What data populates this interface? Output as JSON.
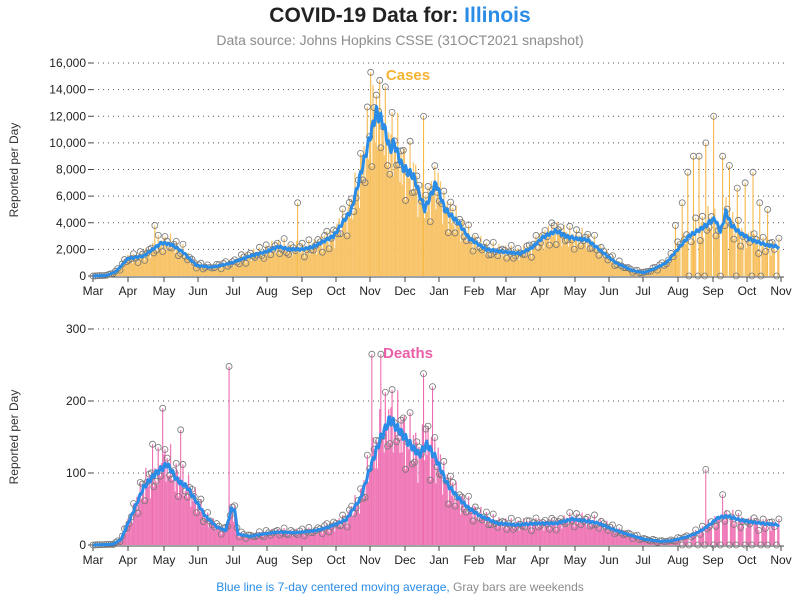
{
  "header": {
    "title_prefix": "COVID-19 Data for: ",
    "state": "Illinois",
    "subtitle": "Data source: Johns Hopkins CSSE (31OCT2021 snapshot)"
  },
  "footnote": {
    "blue_part": "Blue line is 7-day centered moving average,",
    "gray_part": " Gray bars are weekends"
  },
  "colors": {
    "cases": "#f5b335",
    "cases_bar": "#f7c46a",
    "deaths": "#ea5fa8",
    "deaths_bar": "#f07ab8",
    "average": "#2a8ce6",
    "weekend": "#8c8c8c"
  },
  "chart_data": [
    {
      "type": "bar",
      "name": "cases",
      "panel_title": "Cases",
      "ylabel": "Reported per Day",
      "yticks": [
        "0",
        "2,000",
        "4,000",
        "6,000",
        "8,000",
        "10,000",
        "12,000",
        "14,000",
        "16,000"
      ],
      "ylim": [
        0,
        16000
      ],
      "months": [
        "Mar",
        "Apr",
        "May",
        "Jun",
        "Jul",
        "Aug",
        "Sep",
        "Oct",
        "Nov",
        "Dec",
        "Jan",
        "Feb",
        "Mar",
        "Apr",
        "May",
        "Jun",
        "Jul",
        "Aug",
        "Sep",
        "Oct",
        "Nov"
      ],
      "x_range": [
        "2020-03-01",
        "2021-11-01"
      ],
      "average_knots": [
        [
          0,
          0
        ],
        [
          12,
          50
        ],
        [
          20,
          300
        ],
        [
          31,
          1300
        ],
        [
          45,
          1500
        ],
        [
          61,
          2500
        ],
        [
          70,
          2350
        ],
        [
          80,
          1800
        ],
        [
          92,
          800
        ],
        [
          105,
          650
        ],
        [
          122,
          950
        ],
        [
          140,
          1500
        ],
        [
          153,
          1800
        ],
        [
          165,
          2200
        ],
        [
          175,
          2000
        ],
        [
          186,
          2000
        ],
        [
          196,
          2200
        ],
        [
          214,
          3000
        ],
        [
          230,
          5000
        ],
        [
          245,
          10000
        ],
        [
          252,
          12300
        ],
        [
          258,
          11500
        ],
        [
          264,
          9500
        ],
        [
          268,
          10000
        ],
        [
          275,
          8200
        ],
        [
          285,
          7500
        ],
        [
          295,
          5000
        ],
        [
          305,
          7000
        ],
        [
          313,
          5000
        ],
        [
          325,
          4000
        ],
        [
          335,
          2800
        ],
        [
          350,
          2000
        ],
        [
          366,
          1800
        ],
        [
          380,
          1700
        ],
        [
          390,
          2100
        ],
        [
          400,
          2900
        ],
        [
          412,
          3400
        ],
        [
          420,
          3000
        ],
        [
          430,
          2800
        ],
        [
          440,
          2700
        ],
        [
          453,
          1800
        ],
        [
          465,
          1000
        ],
        [
          480,
          400
        ],
        [
          490,
          250
        ],
        [
          498,
          500
        ],
        [
          510,
          1000
        ],
        [
          520,
          2000
        ],
        [
          530,
          3000
        ],
        [
          540,
          3500
        ],
        [
          548,
          4000
        ],
        [
          553,
          4300
        ],
        [
          558,
          3300
        ],
        [
          563,
          4800
        ],
        [
          568,
          3800
        ],
        [
          576,
          3200
        ],
        [
          586,
          2700
        ],
        [
          600,
          2300
        ],
        [
          609,
          2200
        ]
      ],
      "highlights": [
        [
          247,
          15300
        ],
        [
          255,
          14700
        ],
        [
          294,
          12000
        ],
        [
          182,
          5500
        ],
        [
          55,
          3800
        ],
        [
          518,
          3800
        ],
        [
          524,
          5500
        ],
        [
          529,
          7800
        ],
        [
          534,
          9000
        ],
        [
          539,
          9000
        ],
        [
          545,
          10000
        ],
        [
          552,
          12000
        ],
        [
          560,
          9000
        ],
        [
          566,
          8300
        ],
        [
          573,
          6600
        ],
        [
          580,
          7000
        ],
        [
          587,
          7800
        ],
        [
          593,
          5500
        ],
        [
          600,
          5000
        ]
      ],
      "weekend_from": 520
    },
    {
      "type": "bar",
      "name": "deaths",
      "panel_title": "Deaths",
      "ylabel": "Reported per Day",
      "yticks": [
        "0",
        "100",
        "200",
        "300"
      ],
      "ylim": [
        0,
        300
      ],
      "months": [
        "Mar",
        "Apr",
        "May",
        "Jun",
        "Jul",
        "Aug",
        "Sep",
        "Oct",
        "Nov",
        "Dec",
        "Jan",
        "Feb",
        "Mar",
        "Apr",
        "May",
        "Jun",
        "Jul",
        "Aug",
        "Sep",
        "Oct",
        "Nov"
      ],
      "x_range": [
        "2020-03-01",
        "2021-11-01"
      ],
      "average_knots": [
        [
          0,
          0
        ],
        [
          18,
          1
        ],
        [
          25,
          8
        ],
        [
          34,
          40
        ],
        [
          45,
          80
        ],
        [
          56,
          100
        ],
        [
          66,
          112
        ],
        [
          75,
          90
        ],
        [
          84,
          80
        ],
        [
          92,
          60
        ],
        [
          100,
          40
        ],
        [
          110,
          25
        ],
        [
          118,
          20
        ],
        [
          123,
          50
        ],
        [
          126,
          48
        ],
        [
          129,
          15
        ],
        [
          140,
          12
        ],
        [
          150,
          15
        ],
        [
          165,
          18
        ],
        [
          180,
          17
        ],
        [
          198,
          20
        ],
        [
          210,
          25
        ],
        [
          225,
          35
        ],
        [
          238,
          65
        ],
        [
          245,
          100
        ],
        [
          255,
          145
        ],
        [
          264,
          175
        ],
        [
          272,
          160
        ],
        [
          282,
          140
        ],
        [
          290,
          125
        ],
        [
          297,
          140
        ],
        [
          305,
          120
        ],
        [
          315,
          85
        ],
        [
          325,
          65
        ],
        [
          335,
          50
        ],
        [
          345,
          40
        ],
        [
          360,
          30
        ],
        [
          376,
          28
        ],
        [
          396,
          30
        ],
        [
          412,
          30
        ],
        [
          426,
          36
        ],
        [
          440,
          33
        ],
        [
          450,
          30
        ],
        [
          462,
          22
        ],
        [
          475,
          15
        ],
        [
          490,
          8
        ],
        [
          505,
          5
        ],
        [
          515,
          6
        ],
        [
          525,
          10
        ],
        [
          535,
          15
        ],
        [
          543,
          22
        ],
        [
          550,
          30
        ],
        [
          556,
          38
        ],
        [
          565,
          40
        ],
        [
          575,
          35
        ],
        [
          585,
          32
        ],
        [
          595,
          30
        ],
        [
          609,
          28
        ]
      ],
      "highlights": [
        [
          121,
          248
        ],
        [
          248,
          265
        ],
        [
          256,
          265
        ],
        [
          294,
          238
        ],
        [
          302,
          220
        ],
        [
          62,
          190
        ],
        [
          78,
          160
        ],
        [
          53,
          140
        ],
        [
          545,
          105
        ],
        [
          560,
          70
        ]
      ],
      "weekend_from": 520
    }
  ]
}
